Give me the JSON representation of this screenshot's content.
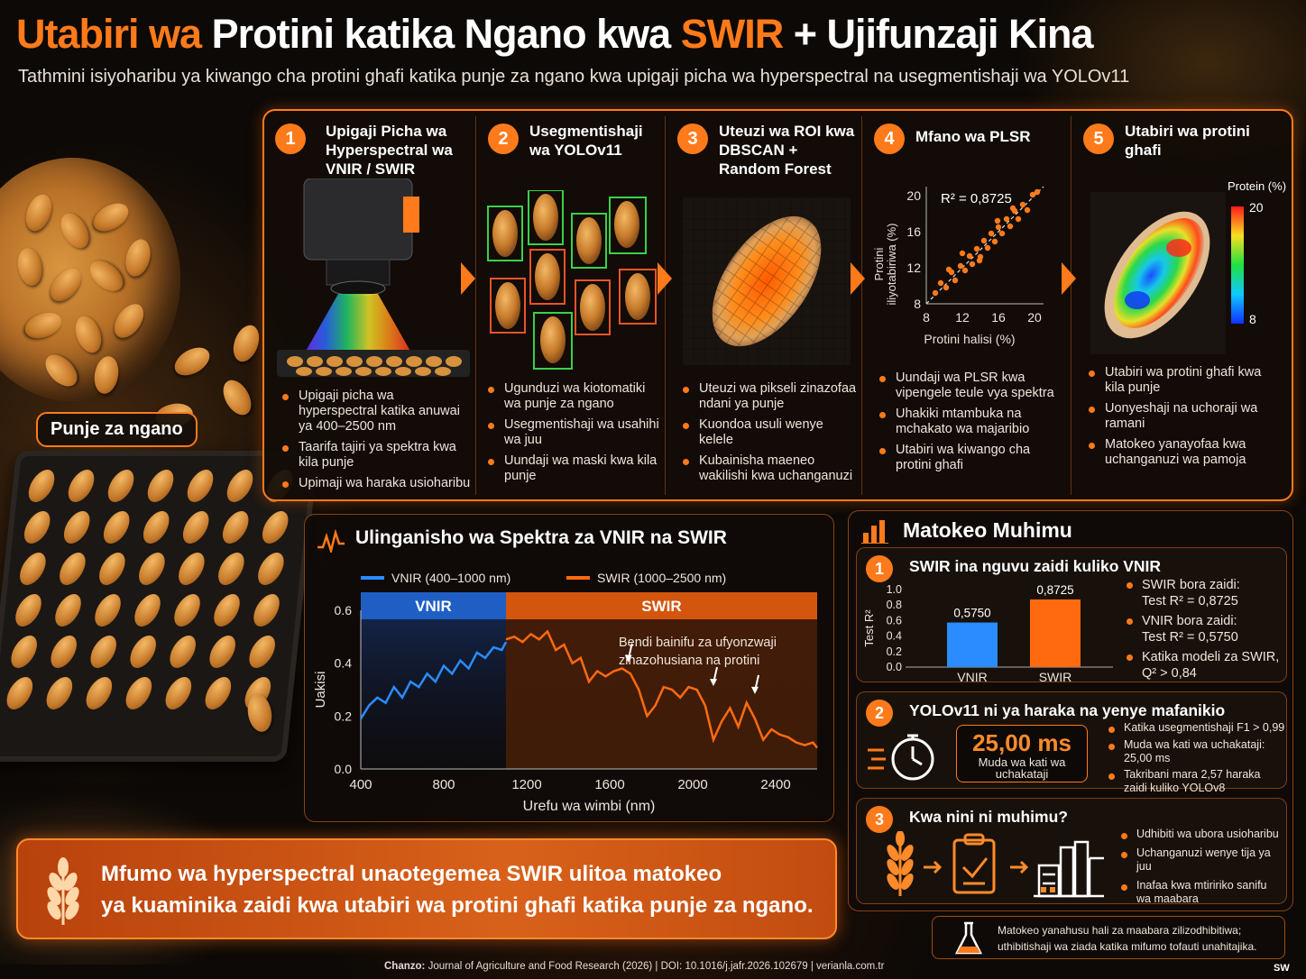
{
  "header": {
    "title_part1": "Utabiri wa",
    "title_part2": "Protini katika Ngano kwa",
    "title_part3": "SWIR",
    "title_part4": "+",
    "title_part5": "Ujifunzaji Kina",
    "subtitle": "Tathmini isiyoharibu ya kiwango cha protini ghafi katika punje za ngano kwa upigaji picha wa hyperspectral na usegmentishaji wa YOLOv11"
  },
  "left": {
    "label": "Punje za ngano"
  },
  "steps": [
    {
      "num": "1",
      "title": "Upigaji Picha wa Hyperspectral wa VNIR / SWIR",
      "bullets": [
        "Upigaji picha wa hyperspectral katika anuwai ya 400–2500 nm",
        "Taarifa tajiri ya spektra kwa kila punje",
        "Upimaji wa haraka usioharibu"
      ]
    },
    {
      "num": "2",
      "title": "Usegmentishaji wa YOLOv11",
      "bullets": [
        "Ugunduzi wa kiotomatiki wa punje za ngano",
        "Usegmentishaji wa usahihi wa juu",
        "Uundaji wa maski kwa kila punje"
      ]
    },
    {
      "num": "3",
      "title": "Uteuzi wa ROI kwa DBSCAN + Random Forest",
      "bullets": [
        "Uteuzi wa pikseli zinazofaa ndani ya punje",
        "Kuondoa usuli wenye kelele",
        "Kubainisha maeneo wakilishi kwa uchanganuzi"
      ]
    },
    {
      "num": "4",
      "title": "Mfano wa PLSR",
      "bullets": [
        "Uundaji wa PLSR kwa vipengele teule vya spektra",
        "Uhakiki mtambuka na mchakato wa majaribio",
        "Utabiri wa kiwango cha protini ghafi"
      ]
    },
    {
      "num": "5",
      "title": "Utabiri wa protini ghafi",
      "bullets": [
        "Utabiri wa protini ghafi kwa kila punje",
        "Uonyeshaji na uchoraji wa ramani",
        "Matokeo yanayofaa kwa uchanganuzi wa pamoja"
      ]
    }
  ],
  "plsr": {
    "r2_label": "R² = 0,8725",
    "xlabel": "Protini halisi (%)",
    "ylabel_line1": "Protini",
    "ylabel_line2": "iliyotabiriwa (%)",
    "ticks": [
      "8",
      "12",
      "16",
      "20"
    ]
  },
  "protein_map": {
    "legend_title": "Protein (%)",
    "legend_max": "20",
    "legend_min": "8"
  },
  "chart_data": [
    {
      "type": "line",
      "title": "Ulinganisho wa Spektra za VNIR na SWIR",
      "xlabel": "Urefu wa wimbi (nm)",
      "ylabel": "Uakisi",
      "xlim": [
        400,
        2600
      ],
      "ylim": [
        0,
        0.6
      ],
      "xticks": [
        "400",
        "800",
        "1200",
        "1600",
        "2000",
        "2400"
      ],
      "yticks": [
        "0.0",
        "0.2",
        "0.4",
        "0.6"
      ],
      "band_labels": [
        "VNIR",
        "SWIR"
      ],
      "annotation": "Bendi bainifu za ufyonzwaji zinazohusiana na protini",
      "series": [
        {
          "name": "VNIR (400–1000 nm)",
          "color": "#2a8cff",
          "x": [
            400,
            440,
            480,
            520,
            560,
            600,
            640,
            680,
            720,
            760,
            800,
            840,
            880,
            920,
            960,
            1000,
            1040,
            1080,
            1100
          ],
          "y": [
            0.19,
            0.24,
            0.27,
            0.25,
            0.31,
            0.27,
            0.33,
            0.31,
            0.36,
            0.33,
            0.39,
            0.36,
            0.41,
            0.38,
            0.44,
            0.42,
            0.46,
            0.45,
            0.48
          ]
        },
        {
          "name": "SWIR (1000–2500 nm)",
          "color": "#ff6a10",
          "x": [
            1100,
            1140,
            1180,
            1220,
            1260,
            1300,
            1340,
            1380,
            1420,
            1460,
            1500,
            1540,
            1580,
            1620,
            1660,
            1700,
            1740,
            1780,
            1820,
            1860,
            1900,
            1940,
            1980,
            2020,
            2060,
            2100,
            2140,
            2180,
            2220,
            2260,
            2300,
            2340,
            2380,
            2420,
            2460,
            2500,
            2540,
            2580,
            2600
          ],
          "y": [
            0.49,
            0.5,
            0.48,
            0.51,
            0.49,
            0.52,
            0.45,
            0.47,
            0.4,
            0.42,
            0.33,
            0.37,
            0.35,
            0.37,
            0.38,
            0.36,
            0.3,
            0.2,
            0.24,
            0.31,
            0.3,
            0.27,
            0.31,
            0.3,
            0.24,
            0.11,
            0.18,
            0.23,
            0.16,
            0.25,
            0.19,
            0.11,
            0.15,
            0.13,
            0.12,
            0.1,
            0.09,
            0.1,
            0.08
          ]
        }
      ]
    },
    {
      "type": "bar",
      "ylabel": "Test R²",
      "categories": [
        "VNIR",
        "SWIR"
      ],
      "values": [
        0.575,
        0.8725
      ],
      "value_labels": [
        "0,5750",
        "0,8725"
      ],
      "ylim": [
        0,
        1.0
      ],
      "yticks": [
        "0.0",
        "0.2",
        "0.4",
        "0.6",
        "0.8",
        "1.0"
      ],
      "colors": [
        "#2a8cff",
        "#ff6a10"
      ]
    },
    {
      "type": "scatter",
      "title": "Mfano wa PLSR",
      "xlabel": "Protini halisi (%)",
      "ylabel": "Protini iliyotabiriwa (%)",
      "xlim": [
        8,
        21
      ],
      "ylim": [
        8,
        21
      ],
      "x": [
        9.0,
        9.6,
        10.2,
        10.8,
        11.2,
        11.8,
        12.3,
        12.8,
        13.1,
        13.6,
        14.0,
        14.4,
        14.8,
        15.2,
        15.6,
        16.0,
        16.4,
        16.9,
        17.3,
        17.8,
        18.2,
        18.7,
        19.2,
        19.8,
        20.3,
        10.5,
        12.0,
        13.9,
        15.9,
        17.6
      ],
      "y": [
        9.2,
        10.3,
        9.8,
        11.5,
        10.6,
        12.2,
        11.7,
        13.3,
        12.4,
        14.1,
        13.2,
        15.0,
        14.2,
        15.8,
        14.9,
        16.5,
        15.8,
        17.4,
        16.6,
        18.3,
        17.4,
        19.0,
        18.4,
        20.1,
        20.4,
        11.8,
        13.6,
        12.8,
        17.2,
        18.6
      ]
    }
  ],
  "results": {
    "heading": "Matokeo Muhimu",
    "card1": {
      "num": "1",
      "title": "SWIR ina nguvu zaidi kuliko VNIR",
      "bullets": [
        {
          "l1": "SWIR bora zaidi:",
          "l2": "Test R² = 0,8725"
        },
        {
          "l1": "VNIR bora zaidi:",
          "l2": "Test R² = 0,5750"
        },
        {
          "l1": "Katika modeli za SWIR,",
          "l2": "Q² > 0,84"
        }
      ]
    },
    "card2": {
      "num": "2",
      "title": "YOLOv11 ni ya haraka na yenye mafanikio",
      "time_value": "25,00 ms",
      "time_l1": "Muda wa kati wa",
      "time_l2": "uchakataji",
      "bullets": [
        {
          "l1": "Katika usegmentishaji F1 > 0,99",
          "l2": ""
        },
        {
          "l1": "Muda wa kati wa uchakataji:",
          "l2": "25,00 ms"
        },
        {
          "l1": "Takribani mara 2,57 haraka",
          "l2": "zaidi kuliko YOLOv8"
        }
      ]
    },
    "card3": {
      "num": "3",
      "title": "Kwa nini ni muhimu?",
      "bullets": [
        {
          "l1": "Udhibiti wa ubora usioharibu",
          "l2": ""
        },
        {
          "l1": "Uchanganuzi wenye tija ya juu",
          "l2": ""
        },
        {
          "l1": "Inafaa kwa mtiririko sanifu",
          "l2": "wa maabara"
        }
      ]
    }
  },
  "spectra_heading": "Ulinganisho wa Spektra za VNIR na SWIR",
  "conclusion": {
    "line1": "Mfumo wa hyperspectral unaotegemea SWIR ulitoa matokeo",
    "line2": "ya kuaminika zaidi kwa utabiri wa protini ghafi katika punje za ngano."
  },
  "note": {
    "line1": "Matokeo yanahusu hali za maabara zilizodhibitiwa;",
    "line2": "uthibitishaji wa ziada katika mifumo tofauti unahitajika."
  },
  "footer": {
    "source_label": "Chanzo:",
    "source_text": "Journal of Agriculture and Food Research (2026)  |  DOI: 10.1016/j.jafr.2026.102679   |   verianla.com.tr",
    "lang": "SW"
  },
  "colors": {
    "accent": "#ff7a1a",
    "vnir": "#2a8cff",
    "swir": "#ff6a10"
  }
}
